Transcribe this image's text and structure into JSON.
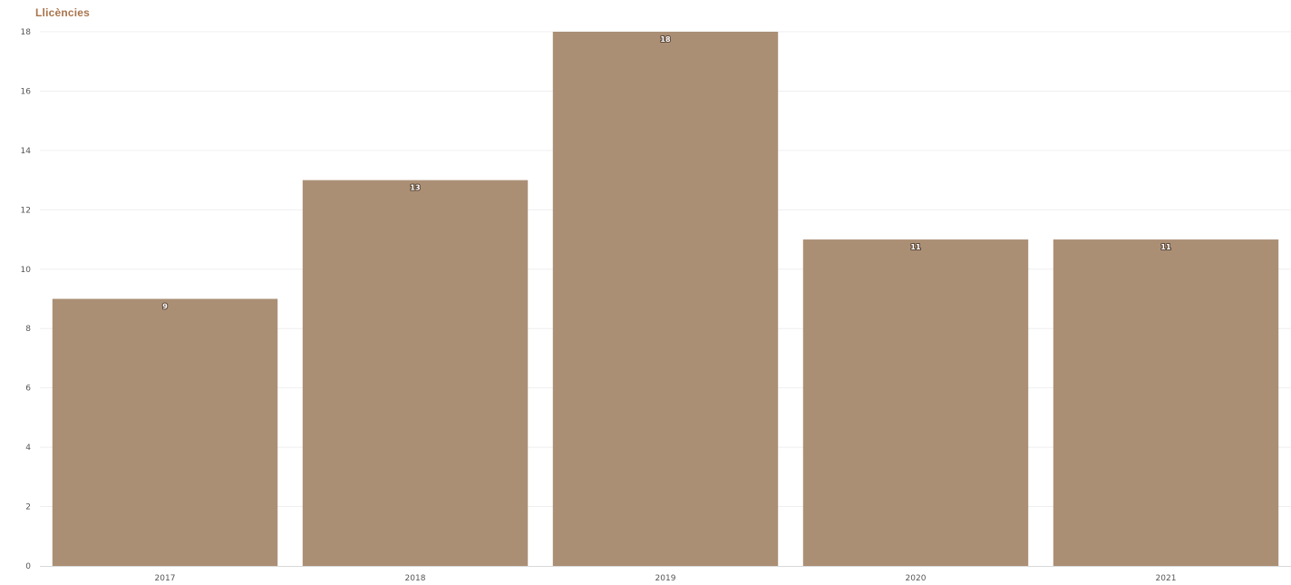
{
  "colors": {
    "bar": "#ab8f75",
    "title": "#a9744c"
  },
  "chart_data": {
    "type": "bar",
    "title": "Llicències",
    "xlabel": "",
    "ylabel": "",
    "categories": [
      "2017",
      "2018",
      "2019",
      "2020",
      "2021"
    ],
    "values": [
      9,
      13,
      18,
      11,
      11
    ],
    "data_labels": [
      "9",
      "13",
      "18",
      "11",
      "11"
    ],
    "ylim": [
      0,
      18
    ],
    "yticks": [
      0,
      2,
      4,
      6,
      8,
      10,
      12,
      14,
      16,
      18
    ],
    "grid": true,
    "legend": "none"
  }
}
